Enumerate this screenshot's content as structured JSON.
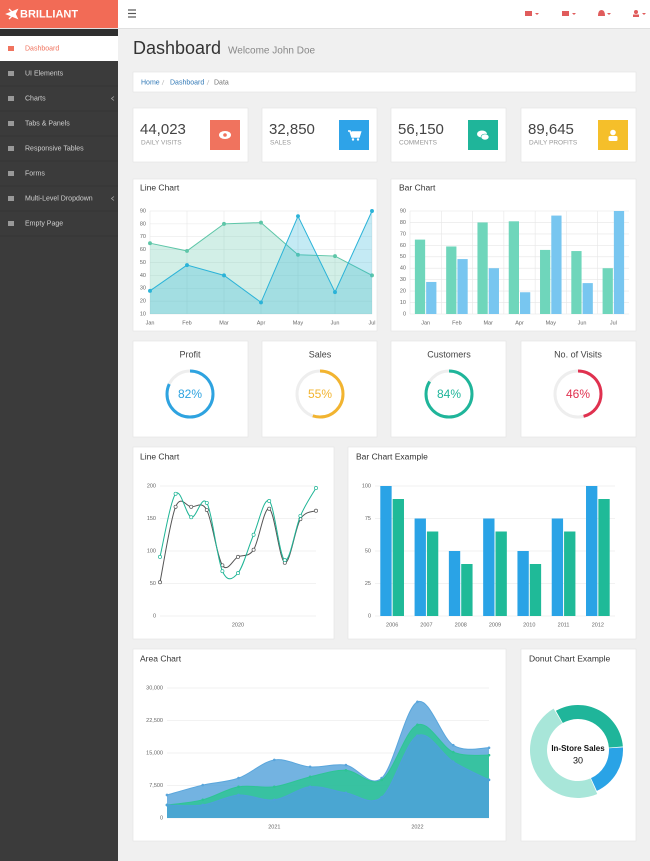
{
  "brand": "BRILLIANT",
  "sidebar": {
    "items": [
      "Dashboard",
      "UI Elements",
      "Charts",
      "Tabs & Panels",
      "Responsive Tables",
      "Forms",
      "Multi-Level Dropdown",
      "Empty Page"
    ]
  },
  "header": {
    "title": "Dashboard",
    "subtitle": "Welcome John Doe"
  },
  "breadcrumb": [
    "Home",
    "Dashboard",
    "Data"
  ],
  "stats": [
    {
      "value": "44,023",
      "label": "DAILY VISITS",
      "color": "#f0735e"
    },
    {
      "value": "32,850",
      "label": "SALES",
      "color": "#2ea3e8"
    },
    {
      "value": "56,150",
      "label": "COMMENTS",
      "color": "#1fb59a"
    },
    {
      "value": "89,645",
      "label": "DAILY PROFITS",
      "color": "#f5bf2a"
    }
  ],
  "chart_data": [
    {
      "type": "area",
      "title": "Line Chart",
      "categories": [
        "Jan",
        "Feb",
        "Mar",
        "Apr",
        "May",
        "Jun",
        "Jul"
      ],
      "series": [
        {
          "color": "#5ec6a8",
          "values": [
            65,
            59,
            80,
            81,
            56,
            55,
            40
          ]
        },
        {
          "color": "#2bb3d8",
          "values": [
            28,
            48,
            40,
            19,
            86,
            27,
            90
          ]
        }
      ],
      "ylim": [
        10,
        90
      ],
      "yticks": [
        10,
        20,
        30,
        40,
        50,
        60,
        70,
        80,
        90
      ],
      "grid": true,
      "xgrid": true,
      "markers": true
    },
    {
      "type": "bar",
      "title": "Bar Chart",
      "categories": [
        "Jan",
        "Feb",
        "Mar",
        "Apr",
        "May",
        "Jun",
        "Jul"
      ],
      "series": [
        {
          "color": "#6fd6bb",
          "values": [
            65,
            59,
            80,
            81,
            56,
            55,
            40
          ]
        },
        {
          "color": "#78c6f0",
          "values": [
            28,
            48,
            40,
            19,
            86,
            27,
            90
          ]
        }
      ],
      "ylim": [
        0,
        90
      ],
      "yticks": [
        0,
        10,
        20,
        30,
        40,
        50,
        60,
        70,
        80,
        90
      ],
      "grid": true,
      "xgrid": true
    },
    {
      "type": "gauge",
      "title": "Profit",
      "values": [
        82
      ],
      "value_labels": [
        "82%"
      ],
      "color": "#2ea3e0"
    },
    {
      "type": "gauge",
      "title": "Sales",
      "values": [
        55
      ],
      "value_labels": [
        "55%"
      ],
      "color": "#f2b430"
    },
    {
      "type": "gauge",
      "title": "Customers",
      "values": [
        84
      ],
      "value_labels": [
        "84%"
      ],
      "color": "#1fb59a"
    },
    {
      "type": "gauge",
      "title": "No. of Visits",
      "values": [
        46
      ],
      "value_labels": [
        "46%"
      ],
      "color": "#e0314f"
    },
    {
      "type": "line",
      "title": "Line Chart",
      "categories": [
        null,
        null,
        null,
        null,
        null,
        "2020",
        null,
        null,
        null,
        null,
        null
      ],
      "series": [
        {
          "color": "#555555",
          "values": [
            52,
            168,
            168,
            163,
            78,
            91,
            102,
            165,
            82,
            149,
            162
          ]
        },
        {
          "color": "#1fb596",
          "values": [
            91,
            188,
            152,
            174,
            69,
            66,
            125,
            177,
            86,
            154,
            197
          ]
        }
      ],
      "ylim": [
        0,
        200
      ],
      "yticks": [
        0,
        50,
        100,
        150,
        200
      ],
      "grid": true,
      "smooth": true,
      "markers": true
    },
    {
      "type": "bar",
      "title": "Bar Chart Example",
      "categories": [
        "2006",
        "2007",
        "2008",
        "2009",
        "2010",
        "2011",
        "2012"
      ],
      "series": [
        {
          "color": "#2aa3e6",
          "values": [
            100,
            75,
            50,
            75,
            50,
            75,
            100
          ]
        },
        {
          "color": "#1fba98",
          "values": [
            90,
            65,
            40,
            65,
            40,
            65,
            90
          ]
        }
      ],
      "ylim": [
        0,
        100
      ],
      "yticks": [
        0,
        25,
        50,
        75,
        100
      ],
      "grid": true
    },
    {
      "type": "area",
      "title": "Area Chart",
      "categories": [
        null,
        null,
        null,
        "2021",
        null,
        null,
        null,
        "2022",
        null,
        null
      ],
      "series": [
        {
          "color": "#5aa6dc",
          "values": [
            5300,
            7600,
            9200,
            13400,
            11800,
            12200,
            9200,
            26800,
            16800,
            16200
          ]
        },
        {
          "color": "#2ec495",
          "values": [
            3000,
            4200,
            7200,
            7200,
            9500,
            11000,
            8800,
            21500,
            15200,
            14500
          ]
        },
        {
          "color": "#4ea1db",
          "values": [
            3000,
            3000,
            5300,
            4200,
            7200,
            5800,
            4800,
            19000,
            13000,
            8800
          ]
        }
      ],
      "ylim": [
        0,
        30000
      ],
      "yticks": [
        0,
        {
          "value": 7500,
          "label": "7,500"
        },
        {
          "value": 15000,
          "label": "15,000"
        },
        {
          "value": 22500,
          "label": "22,500"
        },
        {
          "value": 30000,
          "label": "30,000"
        }
      ],
      "grid": true,
      "smooth": true,
      "markers": true
    },
    {
      "type": "donut",
      "title": "Donut Chart Example",
      "categories": [
        null,
        null,
        "In-Store Sales"
      ],
      "values": [
        20,
        12,
        30
      ],
      "colors": [
        "#1fb59a",
        "#2aa3e6",
        "#a8e6d9"
      ]
    }
  ]
}
